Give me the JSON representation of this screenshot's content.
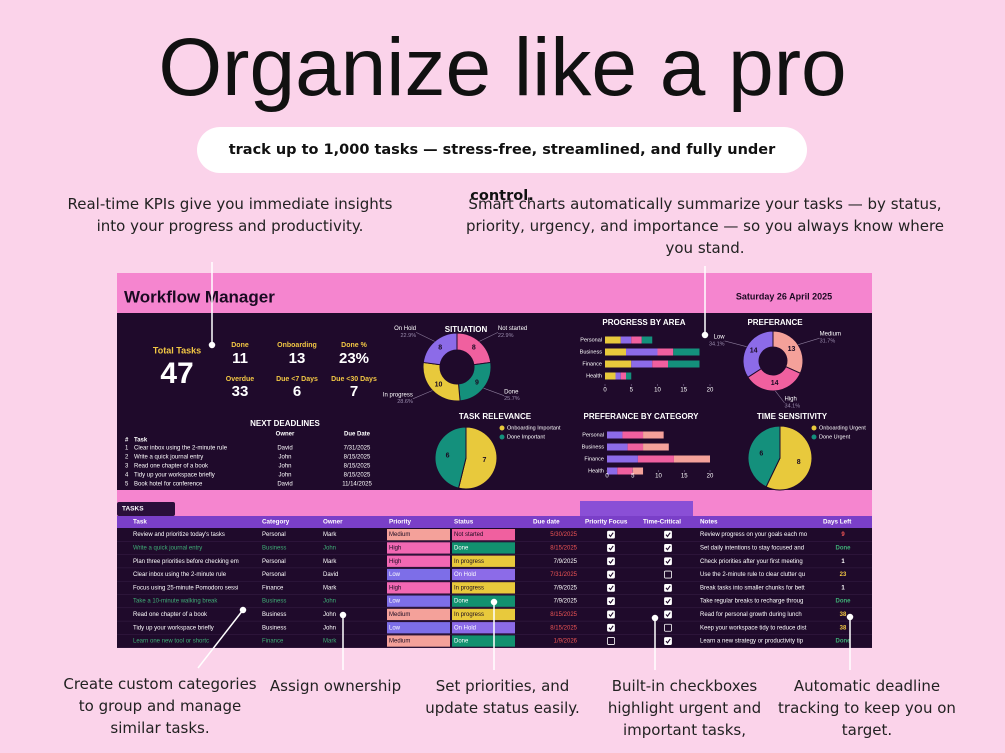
{
  "header": {
    "title": "Organize like a pro",
    "subtitle": "track up to 1,000 tasks — stress-free, streamlined, and fully under control."
  },
  "callouts": {
    "top": [
      "Real-time KPIs give you immediate insights into your progress and productivity.",
      "Smart charts automatically summarize your tasks — by status, priority, urgency, and importance — so you always know where you stand."
    ],
    "bottom": [
      "Create custom categories to group and manage similar tasks.",
      "Assign ownership",
      "Set priorities, and update status easily.",
      "Built-in checkboxes highlight urgent and important tasks,",
      "Automatic deadline tracking to keep you on target."
    ]
  },
  "dashboard": {
    "title": "Workflow Manager",
    "date": "Saturday 26 April 2025",
    "kpis": [
      {
        "label": "Total Tasks",
        "value": 47
      },
      {
        "label": "Done",
        "value": 11
      },
      {
        "label": "Onboarding",
        "value": 13
      },
      {
        "label": "Done %",
        "value": "23%"
      },
      {
        "label": "Overdue",
        "value": 33
      },
      {
        "label": "Due <7 Days",
        "value": 6
      },
      {
        "label": "Due <30 Days",
        "value": 7
      }
    ],
    "deadlines": {
      "title": "NEXT DEADLINES",
      "columns": [
        "#",
        "Task",
        "Owner",
        "Due Date"
      ],
      "rows": [
        [
          1,
          "Clear inbox using the 2-minute rule",
          "David",
          "7/31/2025"
        ],
        [
          2,
          "Write a quick journal entry",
          "John",
          "8/15/2025"
        ],
        [
          3,
          "Read one chapter of a book",
          "John",
          "8/15/2025"
        ],
        [
          4,
          "Tidy up your workspace briefly",
          "John",
          "8/15/2025"
        ],
        [
          5,
          "Book hotel for conference",
          "David",
          "11/14/2025"
        ]
      ]
    }
  },
  "chart_data": [
    {
      "type": "donut",
      "title": "SITUATION",
      "categories": [
        "Not started",
        "Done",
        "In progress",
        "On Hold"
      ],
      "values": [
        8,
        9,
        10,
        8
      ],
      "percent_labels": [
        "22.9%",
        "25.7%",
        "28.6%",
        "22.9%"
      ],
      "colors": [
        "#f0609f",
        "#14907c",
        "#e8c93c",
        "#8c6be8"
      ]
    },
    {
      "type": "bar",
      "title": "PROGRESS BY AREA",
      "categories": [
        "Personal",
        "Business",
        "Finance",
        "Health"
      ],
      "series": [
        {
          "color": "#e8c93c",
          "values": [
            3,
            4,
            5,
            2
          ]
        },
        {
          "color": "#8c6be8",
          "values": [
            2,
            6,
            4,
            1
          ]
        },
        {
          "color": "#f0609f",
          "values": [
            2,
            3,
            3,
            1
          ]
        },
        {
          "color": "#14907c",
          "values": [
            2,
            5,
            6,
            1
          ]
        }
      ],
      "xlim": [
        0,
        20
      ],
      "xticks": [
        0,
        5,
        10,
        15,
        20
      ]
    },
    {
      "type": "donut",
      "title": "PREFERANCE",
      "categories": [
        "Medium",
        "High",
        "Low"
      ],
      "values": [
        13,
        14,
        14
      ],
      "percent_labels": [
        "31.7%",
        "34.1%",
        "34.1%"
      ],
      "colors": [
        "#f4a19a",
        "#f0609f",
        "#8c6be8"
      ]
    },
    {
      "type": "pie",
      "title": "TASK RELEVANCE",
      "categories": [
        "Onboarding Important",
        "Done Important"
      ],
      "values": [
        7,
        6
      ],
      "colors": [
        "#e8c93c",
        "#14907c"
      ]
    },
    {
      "type": "bar",
      "title": "PREFERANCE BY CATEGORY",
      "categories": [
        "Personal",
        "Business",
        "Finance",
        "Health"
      ],
      "series": [
        {
          "color": "#8c6be8",
          "values": [
            3,
            4,
            6,
            2
          ]
        },
        {
          "color": "#f0609f",
          "values": [
            4,
            3,
            7,
            3
          ]
        },
        {
          "color": "#f4a19a",
          "values": [
            4,
            5,
            7,
            2
          ]
        }
      ],
      "xlim": [
        0,
        20
      ],
      "xticks": [
        0,
        5,
        10,
        15,
        20
      ]
    },
    {
      "type": "pie",
      "title": "TIME SENSITIVITY",
      "categories": [
        "Onboarding Urgent",
        "Done Urgent"
      ],
      "values": [
        8,
        6
      ],
      "colors": [
        "#e8c93c",
        "#14907c"
      ]
    }
  ],
  "table": {
    "tab": "TASKS",
    "columns": [
      "Task",
      "Category",
      "Owner",
      "Priority",
      "Status",
      "Due date",
      "Priority Focus",
      "Time-Critical",
      "Notes",
      "Days Left"
    ],
    "rows": [
      [
        "Review and prioritize today's tasks",
        "Personal",
        "Mark",
        "Medium",
        "Not started",
        "5/30/2025",
        true,
        true,
        "Review progress on your goals each mo",
        9
      ],
      [
        "Write a quick journal entry",
        "Business",
        "John",
        "High",
        "Done",
        "8/15/2025",
        true,
        true,
        "Set daily intentions to stay focused and",
        "Done"
      ],
      [
        "Plan three priorities before checking em",
        "Personal",
        "Mark",
        "High",
        "In progress",
        "7/9/2025",
        true,
        true,
        "Check priorities after your first meeting",
        1
      ],
      [
        "Clear inbox using the 2-minute rule",
        "Personal",
        "David",
        "Low",
        "On Hold",
        "7/31/2025",
        true,
        false,
        "Use the 2-minute rule to clear clutter qu",
        23
      ],
      [
        "Focus using 25-minute Pomodoro sessi",
        "Finance",
        "Mark",
        "High",
        "In progress",
        "7/9/2025",
        true,
        true,
        "Break tasks into smaller chunks for bett",
        1
      ],
      [
        "Take a 10-minute walking break",
        "Business",
        "John",
        "Low",
        "Done",
        "7/9/2025",
        true,
        true,
        "Take regular breaks to recharge throug",
        "Done"
      ],
      [
        "Read one chapter of a book",
        "Business",
        "John",
        "Medium",
        "In progress",
        "8/15/2025",
        true,
        true,
        "Read for personal growth during lunch",
        38
      ],
      [
        "Tidy up your workspace briefly",
        "Business",
        "John",
        "Low",
        "On Hold",
        "8/15/2025",
        true,
        false,
        "Keep your workspace tidy to reduce dist",
        38
      ],
      [
        "Learn one new tool or shortc",
        "Finance",
        "Mark",
        "Medium",
        "Done",
        "1/9/2026",
        false,
        true,
        "Learn a new strategy or productivity tip",
        "Done"
      ]
    ]
  }
}
